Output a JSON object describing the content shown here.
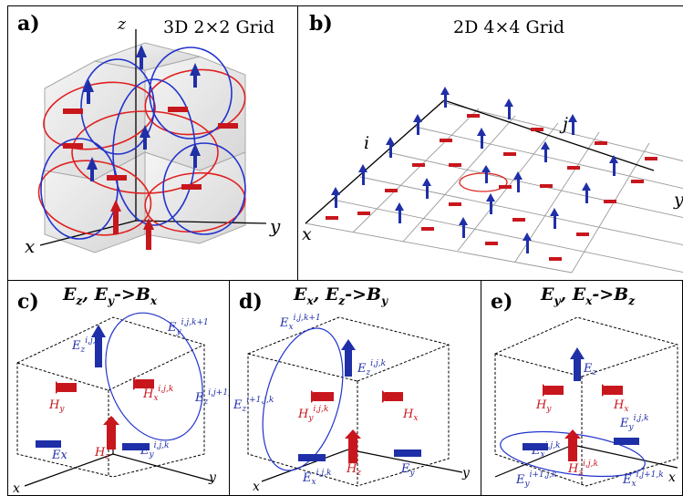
{
  "colors": {
    "red": "#c8161d",
    "blue": "#1f2fa8",
    "ring_red": "#e02020",
    "ring_blue": "#2233cc",
    "grid": "#888888"
  },
  "panel_a": {
    "label": "a)",
    "title": "3D 2×2 Grid",
    "axis_z": "z",
    "axis_y": "y",
    "axis_x": "x"
  },
  "panel_b": {
    "label": "b)",
    "title": "2D 4×4 Grid",
    "axis_i": "i",
    "axis_j": "j",
    "axis_x": "x",
    "axis_y": "y"
  },
  "panel_c": {
    "label": "c)",
    "title": "Ez, Ey->Bx",
    "t1": "E",
    "t1s": "z",
    "t2": "E",
    "t2s": "y",
    "arrow": "->",
    "t3": "B",
    "t3s": "x",
    "labels": {
      "ez": "E",
      "ez_sub": "z",
      "ez_sup": "i,j,k",
      "ey_top": "E",
      "ey_top_sub": "y",
      "ey_top_sup": "i,j,k+1",
      "hx": "H",
      "hx_sub": "x",
      "hx_sup": "i,j,k",
      "ez_right": "E",
      "ez_right_sub": "z",
      "ez_right_sup": "i,j+1,k",
      "hy": "H",
      "hy_sub": "y",
      "hz": "H",
      "hz_sub": "z",
      "ex": "Ex",
      "ey_bot": "E",
      "ey_bot_sub": "y",
      "ey_bot_sup": "i,j,k",
      "axis_x": "x",
      "axis_y": "y"
    }
  },
  "panel_d": {
    "label": "d)",
    "t1": "E",
    "t1s": "x",
    "t2": "E",
    "t2s": "z",
    "arrow": "->",
    "t3": "B",
    "t3s": "y",
    "labels": {
      "ex_top": "E",
      "ex_top_sub": "x",
      "ex_top_sup": "i,j,k+1",
      "ez": "E",
      "ez_sub": "z",
      "ez_sup": "i,j,k",
      "ez_left": "E",
      "ez_left_sub": "z",
      "ez_left_sup": "i+1,j,k",
      "hy": "H",
      "hy_sub": "y",
      "hy_sup": "i,j,k",
      "hx": "H",
      "hx_sub": "x",
      "ex_bot": "E",
      "ex_bot_sub": "x",
      "ex_bot_sup": "i,j,k",
      "hz": "H",
      "hz_sub": "z",
      "ey": "E",
      "ey_sub": "y",
      "axis_x": "x",
      "axis_y": "y"
    }
  },
  "panel_e": {
    "label": "e)",
    "t1": "E",
    "t1s": "y",
    "t2": "E",
    "t2s": "x",
    "arrow": "->",
    "t3": "B",
    "t3s": "z",
    "labels": {
      "ez": "E",
      "ez_sub": "z",
      "hy": "H",
      "hy_sub": "y",
      "hx": "H",
      "hx_sub": "x",
      "ey": "E",
      "ey_sub": "y",
      "ey_sup": "i,j,k",
      "ex": "E",
      "ex_sub": "x",
      "ex_sup": "i,j,k",
      "hz": "H",
      "hz_sub": "z",
      "hz_sup": "i,j,k",
      "ey_bot": "E",
      "ey_bot_sub": "y",
      "ey_bot_sup": "i+1,j,k",
      "ex_bot": "E",
      "ex_bot_sub": "x",
      "ex_bot_sup": "i,j+1,k",
      "axis_x": "x"
    }
  }
}
